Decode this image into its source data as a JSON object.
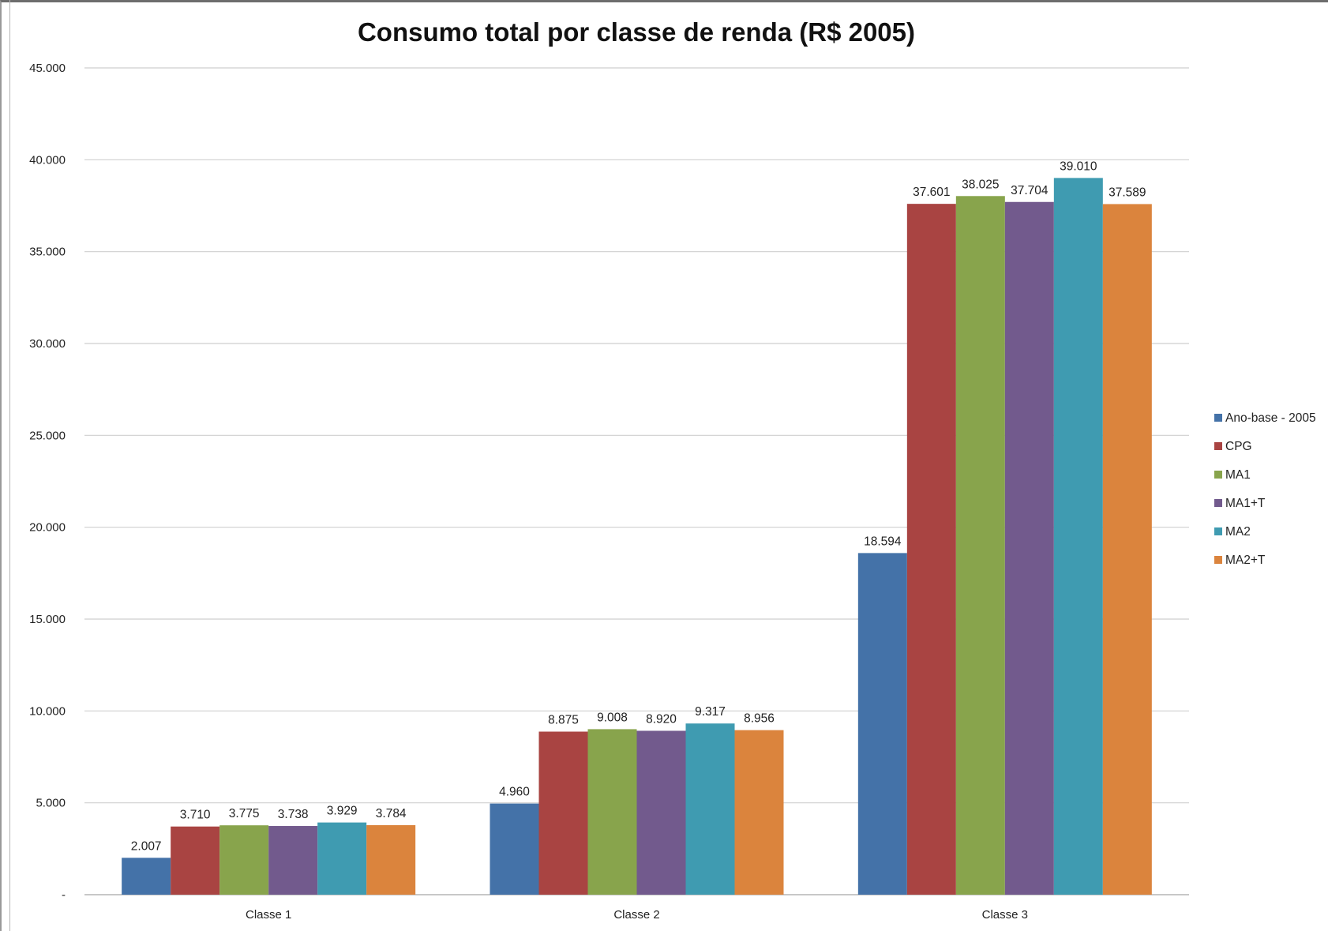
{
  "chart_data": {
    "type": "bar",
    "title": "Consumo total por classe de renda (R$ 2005)",
    "xlabel": "",
    "ylabel": "",
    "ylim": [
      0,
      45000
    ],
    "y_ticks": [
      {
        "value": 0,
        "label": "-"
      },
      {
        "value": 5000,
        "label": "5.000"
      },
      {
        "value": 10000,
        "label": "10.000"
      },
      {
        "value": 15000,
        "label": "15.000"
      },
      {
        "value": 20000,
        "label": "20.000"
      },
      {
        "value": 25000,
        "label": "25.000"
      },
      {
        "value": 30000,
        "label": "30.000"
      },
      {
        "value": 35000,
        "label": "35.000"
      },
      {
        "value": 40000,
        "label": "40.000"
      },
      {
        "value": 45000,
        "label": "45.000"
      }
    ],
    "grid": true,
    "legend_position": "right",
    "categories": [
      "Classe 1",
      "Classe 2",
      "Classe 3"
    ],
    "series": [
      {
        "name": "Ano-base - 2005",
        "color": "#4472a8",
        "values": [
          2007,
          4960,
          18594
        ],
        "labels": [
          "2.007",
          "4.960",
          "18.594"
        ]
      },
      {
        "name": "CPG",
        "color": "#a94442",
        "values": [
          3710,
          8875,
          37601
        ],
        "labels": [
          "3.710",
          "8.875",
          "37.601"
        ]
      },
      {
        "name": "MA1",
        "color": "#88a44c",
        "values": [
          3775,
          9008,
          38025
        ],
        "labels": [
          "3.775",
          "9.008",
          "38.025"
        ]
      },
      {
        "name": "MA1+T",
        "color": "#725a8d",
        "values": [
          3738,
          8920,
          37704
        ],
        "labels": [
          "3.738",
          "8.920",
          "37.704"
        ]
      },
      {
        "name": "MA2",
        "color": "#3f9bb1",
        "values": [
          3929,
          9317,
          39010
        ],
        "labels": [
          "3.929",
          "9.317",
          "39.010"
        ]
      },
      {
        "name": "MA2+T",
        "color": "#db843d",
        "values": [
          3784,
          8956,
          37589
        ],
        "labels": [
          "3.784",
          "8.956",
          "37.589"
        ]
      }
    ]
  }
}
